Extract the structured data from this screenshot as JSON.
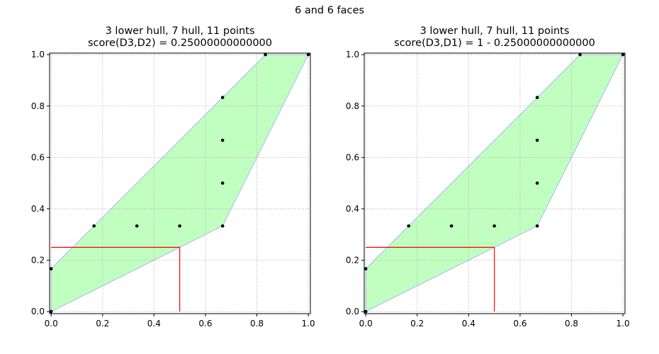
{
  "figure": {
    "suptitle": "6 and 6 faces"
  },
  "chart_data": [
    {
      "type": "scatter",
      "title": "3 lower hull, 7 hull, 11 points",
      "subtitle": "score(D3,D2) = 0.25000000000000",
      "xlim": [
        0,
        1
      ],
      "ylim": [
        0,
        1
      ],
      "xticks": [
        "0.0",
        "0.2",
        "0.4",
        "0.6",
        "0.8",
        "1.0"
      ],
      "yticks": [
        "0.0",
        "0.2",
        "0.4",
        "0.6",
        "0.8",
        "1.0"
      ],
      "grid": true,
      "points": [
        {
          "x": 0,
          "y": 0
        },
        {
          "x": 0,
          "y": 0.1667
        },
        {
          "x": 0.1667,
          "y": 0.3333
        },
        {
          "x": 0.3333,
          "y": 0.3333
        },
        {
          "x": 0.5,
          "y": 0.3333
        },
        {
          "x": 0.6667,
          "y": 0.3333
        },
        {
          "x": 0.6667,
          "y": 0.5
        },
        {
          "x": 0.6667,
          "y": 0.6667
        },
        {
          "x": 0.6667,
          "y": 0.8333
        },
        {
          "x": 0.8333,
          "y": 1
        },
        {
          "x": 1,
          "y": 1
        }
      ],
      "hull": [
        [
          0,
          0
        ],
        [
          0.6667,
          0.3333
        ],
        [
          1,
          1
        ],
        [
          0.8333,
          1
        ],
        [
          0,
          0.1667
        ]
      ],
      "score_line": [
        [
          0,
          0.25
        ],
        [
          0.5,
          0.25
        ],
        [
          0.5,
          0
        ]
      ],
      "colors": {
        "hull_fill": "#c0ffc0",
        "hull_edge": "#a8b8f0",
        "score_line": "#ff0000",
        "points": "#000000",
        "grid": "#b0b0b0"
      }
    },
    {
      "type": "scatter",
      "title": "3 lower hull, 7 hull, 11 points",
      "subtitle": "score(D3,D1) = 1 - 0.25000000000000",
      "xlim": [
        0,
        1
      ],
      "ylim": [
        0,
        1
      ],
      "xticks": [
        "0.0",
        "0.2",
        "0.4",
        "0.6",
        "0.8",
        "1.0"
      ],
      "yticks": [
        "0.0",
        "0.2",
        "0.4",
        "0.6",
        "0.8",
        "1.0"
      ],
      "grid": true,
      "points": [
        {
          "x": 0,
          "y": 0
        },
        {
          "x": 0,
          "y": 0.1667
        },
        {
          "x": 0.1667,
          "y": 0.3333
        },
        {
          "x": 0.3333,
          "y": 0.3333
        },
        {
          "x": 0.5,
          "y": 0.3333
        },
        {
          "x": 0.6667,
          "y": 0.3333
        },
        {
          "x": 0.6667,
          "y": 0.5
        },
        {
          "x": 0.6667,
          "y": 0.6667
        },
        {
          "x": 0.6667,
          "y": 0.8333
        },
        {
          "x": 0.8333,
          "y": 1
        },
        {
          "x": 1,
          "y": 1
        }
      ],
      "hull": [
        [
          0,
          0
        ],
        [
          0.6667,
          0.3333
        ],
        [
          1,
          1
        ],
        [
          0.8333,
          1
        ],
        [
          0,
          0.1667
        ]
      ],
      "score_line": [
        [
          0,
          0.25
        ],
        [
          0.5,
          0.25
        ],
        [
          0.5,
          0
        ]
      ],
      "colors": {
        "hull_fill": "#c0ffc0",
        "hull_edge": "#a8b8f0",
        "score_line": "#ff0000",
        "points": "#000000",
        "grid": "#b0b0b0"
      }
    }
  ]
}
